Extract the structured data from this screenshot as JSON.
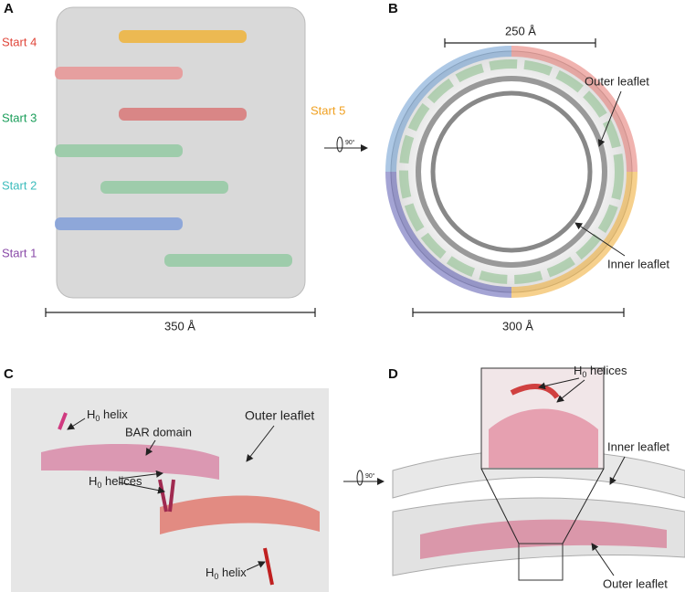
{
  "rotation": "90°",
  "panel_a": {
    "label": "A",
    "starts": [
      "Start 4",
      "Start 3",
      "Start 2",
      "Start 1",
      "Start 5"
    ],
    "scale": "350 Å"
  },
  "panel_b": {
    "label": "B",
    "scale_top": "250 Å",
    "outer": "Outer leaflet",
    "inner": "Inner leaflet",
    "scale_bottom": "300 Å"
  },
  "panel_c": {
    "label": "C",
    "h0_helix_top": {
      "main": "H",
      "sub": "0",
      "rest": " helix"
    },
    "bar_domain": "BAR domain",
    "outer": "Outer leaflet",
    "h0_helices": {
      "main": "H",
      "sub": "0",
      "rest": " helices"
    },
    "h0_helix_bottom": {
      "main": "H",
      "sub": "0",
      "rest": " helix"
    }
  },
  "panel_d": {
    "label": "D",
    "h0_helices": {
      "main": "H",
      "sub": "0",
      "rest": " helices"
    },
    "inner": "Inner leaflet",
    "outer": "Outer leaflet"
  }
}
